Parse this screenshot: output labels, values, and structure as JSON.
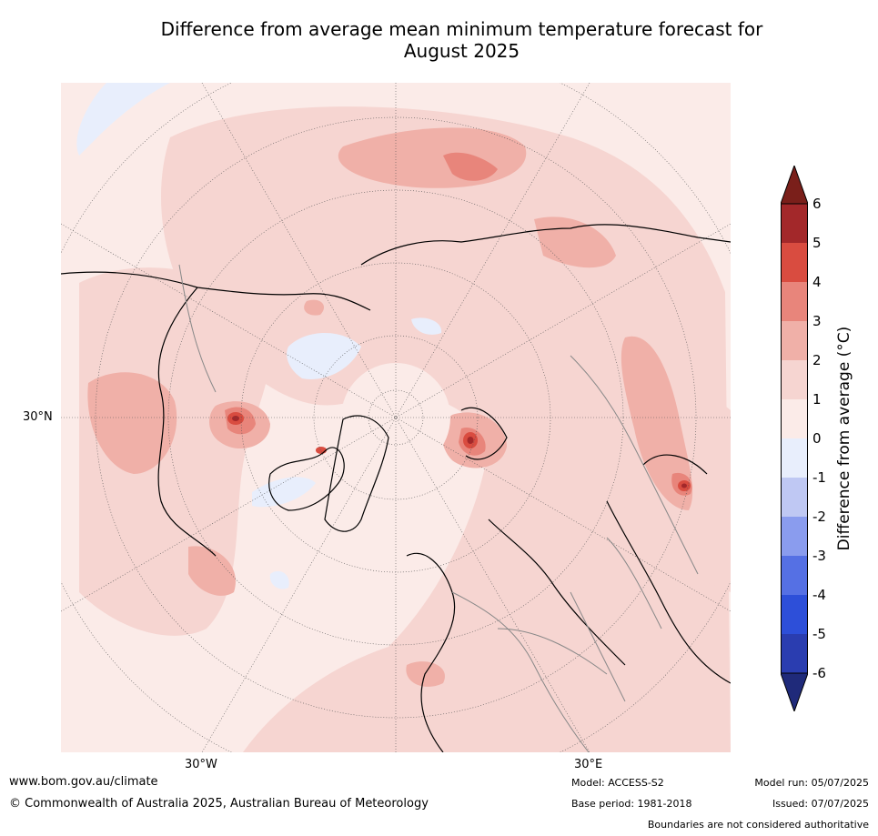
{
  "title_line1": "Difference from average mean minimum temperature forecast for",
  "title_line2": "August 2025",
  "colorbar": {
    "label": "Difference from average (°C)",
    "ticks": [
      "6",
      "5",
      "4",
      "3",
      "2",
      "1",
      "0",
      "-1",
      "-2",
      "-3",
      "-4",
      "-5",
      "-6"
    ],
    "colors": [
      "#a3282a",
      "#d94c40",
      "#e8857b",
      "#f0b0a8",
      "#f6d5d1",
      "#fbebe8",
      "#e8eefc",
      "#bfc8f3",
      "#8a9cee",
      "#5570e4",
      "#2d4fd9",
      "#2a3db0"
    ],
    "max_arrow_color": "#7a1f1a",
    "min_arrow_color": "#1f2a7a"
  },
  "map_labels": {
    "lat30n": "30°N",
    "lon30w": "30°W",
    "lon30e": "30°E"
  },
  "footer": {
    "url": "www.bom.gov.au/climate",
    "copyright": "© Commonwealth of Australia 2025, Australian Bureau of Meteorology",
    "model": "Model: ACCESS-S2",
    "base_period": "Base period: 1981-2018",
    "model_run": "Model run: 05/07/2025",
    "issued": "Issued: 07/07/2025",
    "disclaimer": "Boundaries are not considered authoritative"
  }
}
